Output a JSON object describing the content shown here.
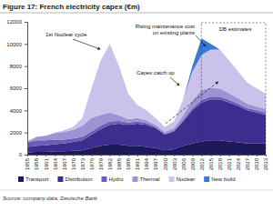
{
  "chart_data": {
    "type": "area",
    "title": "Figure 17: French electricity capex (€m)",
    "source": "Source: company data, Deutsche Bank",
    "stacked": true,
    "grid": false,
    "legend": "bottom",
    "x": [
      1955,
      1958,
      1961,
      1964,
      1967,
      1970,
      1973,
      1976,
      1979,
      1982,
      1985,
      1988,
      1991,
      1994,
      1997,
      2000,
      2003,
      2006,
      2009,
      2012,
      2015,
      2018,
      2021,
      2024,
      2027,
      2030,
      2033
    ],
    "xlim": [
      1955,
      2033
    ],
    "xticks": [
      1955,
      1958,
      1961,
      1964,
      1967,
      1970,
      1973,
      1976,
      1979,
      1982,
      1985,
      1988,
      1991,
      1994,
      1997,
      2000,
      2003,
      2006,
      2009,
      2012,
      2015,
      2018,
      2021,
      2024,
      2027,
      2030,
      2033
    ],
    "ylim": [
      0,
      12000
    ],
    "yticks": [
      0,
      2000,
      4000,
      6000,
      8000,
      10000,
      12000
    ],
    "series": [
      {
        "name": "Transport",
        "color": "#1e1a5a",
        "values": [
          200,
          250,
          250,
          300,
          300,
          350,
          400,
          600,
          800,
          900,
          900,
          800,
          800,
          700,
          600,
          400,
          500,
          800,
          1000,
          1200,
          1300,
          1300,
          1200,
          1100,
          1000,
          1000,
          1000
        ]
      },
      {
        "name": "Distribution",
        "color": "#3b2e8e",
        "values": [
          500,
          550,
          600,
          650,
          700,
          800,
          900,
          1200,
          1500,
          1800,
          1900,
          1900,
          2000,
          2000,
          1800,
          1400,
          1600,
          2200,
          3000,
          3500,
          3700,
          3700,
          3500,
          3300,
          3000,
          2800,
          2600
        ]
      },
      {
        "name": "Hydro",
        "color": "#6a5cb8",
        "values": [
          400,
          500,
          450,
          400,
          350,
          300,
          300,
          300,
          300,
          300,
          250,
          200,
          200,
          150,
          100,
          100,
          100,
          150,
          200,
          250,
          250,
          250,
          250,
          200,
          200,
          200,
          200
        ]
      },
      {
        "name": "Thermal",
        "color": "#9d92d4",
        "values": [
          100,
          300,
          400,
          600,
          700,
          800,
          1000,
          1200,
          1000,
          800,
          500,
          300,
          300,
          250,
          200,
          150,
          200,
          400,
          700,
          900,
          800,
          700,
          600,
          500,
          400,
          350,
          300
        ]
      },
      {
        "name": "Nuclear",
        "color": "#cbc2ec",
        "values": [
          0,
          0,
          0,
          50,
          150,
          250,
          700,
          2700,
          4900,
          6200,
          4450,
          2300,
          1200,
          900,
          600,
          450,
          600,
          1450,
          2600,
          3150,
          3450,
          3550,
          2950,
          2400,
          1900,
          1650,
          1400
        ]
      },
      {
        "name": "New build",
        "color": "#3a78d8",
        "values": [
          0,
          0,
          0,
          0,
          0,
          0,
          0,
          0,
          0,
          0,
          0,
          0,
          0,
          0,
          0,
          0,
          0,
          0,
          500,
          1500,
          500,
          0,
          0,
          0,
          0,
          0,
          0
        ]
      }
    ],
    "annotations": [
      {
        "text": [
          "1st Nuclear cycle"
        ]
      },
      {
        "text": [
          "Rising maintenance cost",
          "on existing plants"
        ]
      },
      {
        "text": [
          "Capex catch up"
        ]
      },
      {
        "text": [
          "DB estimates"
        ]
      }
    ]
  }
}
